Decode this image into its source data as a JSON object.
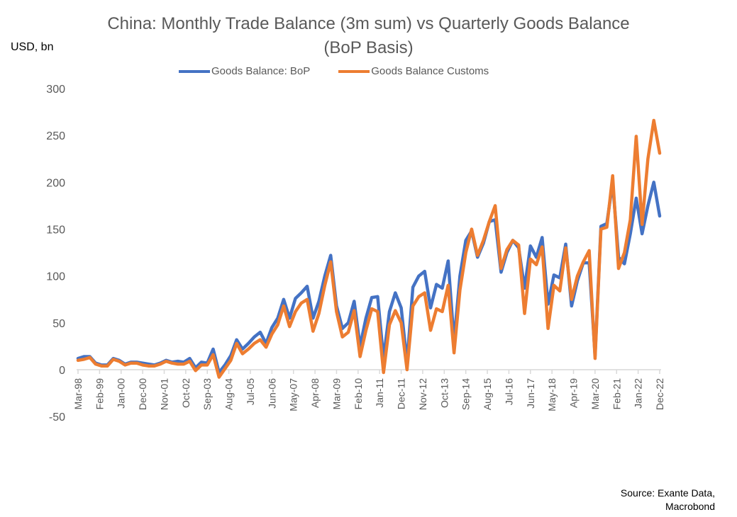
{
  "chart_data": {
    "type": "line",
    "title": [
      "China: Monthly Trade Balance (3m sum) vs Quarterly Goods Balance",
      "(BoP Basis)"
    ],
    "ylabel": "USD, bn",
    "xlabel": "",
    "ylim": [
      -50,
      300
    ],
    "yticks": [
      -50,
      0,
      50,
      100,
      150,
      200,
      250,
      300
    ],
    "xticks": [
      "Mar-98",
      "Feb-99",
      "Jan-00",
      "Dec-00",
      "Nov-01",
      "Oct-02",
      "Sep-03",
      "Aug-04",
      "Jul-05",
      "Jun-06",
      "May-07",
      "Apr-08",
      "Mar-09",
      "Feb-10",
      "Jan-11",
      "Dec-11",
      "Nov-12",
      "Oct-13",
      "Sep-14",
      "Aug-15",
      "Jul-16",
      "Jun-17",
      "May-18",
      "Apr-19",
      "Mar-20",
      "Feb-21",
      "Jan-22",
      "Dec-22"
    ],
    "x_start": "Mar-98",
    "x_end": "Dec-22",
    "x_frequency": "quarterly",
    "grid": false,
    "legend_position": "top",
    "series": [
      {
        "name": "Goods Balance: BoP",
        "color": "#4472C4",
        "values": [
          12,
          14,
          14,
          7,
          5,
          5,
          12,
          10,
          6,
          8,
          8,
          7,
          6,
          5,
          7,
          10,
          8,
          9,
          8,
          12,
          2,
          8,
          7,
          22,
          -3,
          5,
          15,
          32,
          22,
          28,
          35,
          40,
          28,
          45,
          55,
          75,
          55,
          76,
          82,
          89,
          55,
          73,
          100,
          122,
          68,
          44,
          50,
          73,
          25,
          55,
          77,
          78,
          12,
          62,
          82,
          66,
          8,
          88,
          100,
          105,
          66,
          91,
          87,
          116,
          30,
          100,
          138,
          148,
          120,
          135,
          158,
          160,
          104,
          125,
          138,
          130,
          87,
          132,
          120,
          141,
          70,
          101,
          98,
          134,
          68,
          95,
          114,
          114,
          15,
          153,
          156,
          200,
          120,
          113,
          145,
          183,
          145,
          175,
          200,
          164
        ]
      },
      {
        "name": "Goods Balance Customs",
        "color": "#ED7D31",
        "values": [
          10,
          11,
          13,
          6,
          4,
          4,
          11,
          9,
          5,
          7,
          7,
          5,
          4,
          4,
          6,
          9,
          7,
          6,
          6,
          9,
          -1,
          5,
          5,
          16,
          -8,
          1,
          10,
          28,
          17,
          22,
          28,
          32,
          24,
          38,
          48,
          68,
          46,
          62,
          71,
          75,
          41,
          60,
          90,
          115,
          62,
          35,
          40,
          63,
          14,
          42,
          65,
          62,
          -3,
          48,
          63,
          50,
          0,
          68,
          78,
          82,
          42,
          65,
          62,
          90,
          18,
          85,
          125,
          150,
          122,
          138,
          158,
          175,
          108,
          128,
          138,
          133,
          60,
          118,
          112,
          131,
          44,
          90,
          84,
          130,
          75,
          100,
          115,
          127,
          12,
          150,
          152,
          207,
          108,
          125,
          160,
          249,
          155,
          225,
          266,
          231
        ]
      }
    ]
  },
  "source": [
    "Source: Exante Data,",
    "Macrobond"
  ]
}
